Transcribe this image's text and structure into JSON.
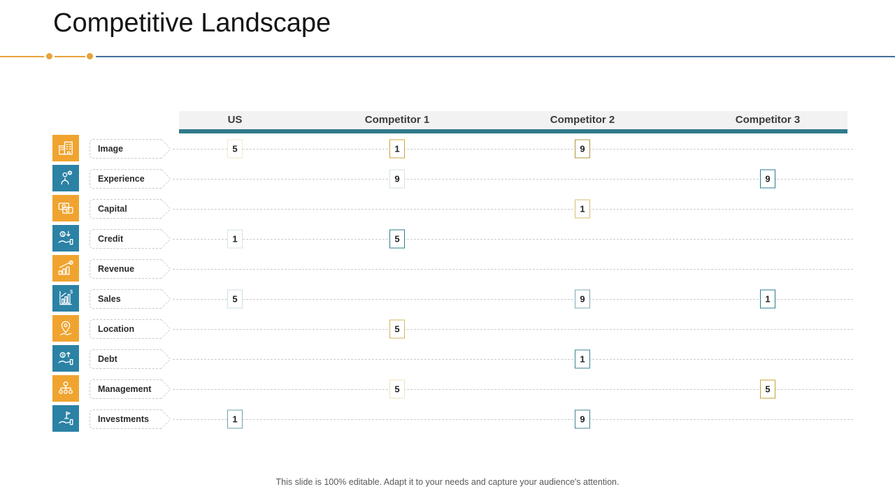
{
  "slide": {
    "title": "Competitive Landscape",
    "footer": "This slide is 100% editable. Adapt it to your needs and capture your audience's attention."
  },
  "colors": {
    "orange": "#F0A42F",
    "blue": "#2B82A5",
    "teal_bar": "#2F7A8C",
    "divider_orange": "#E9A23B",
    "divider_blue": "#41719C",
    "header_bg": "#F2F2F2"
  },
  "table": {
    "columns": [
      "US",
      "Competitor 1",
      "Competitor 2",
      "Competitor 3"
    ],
    "rows": [
      {
        "label": "Image",
        "icon": "building-icon",
        "icon_bg": "orange",
        "values": [
          {
            "col": 0,
            "value": "5",
            "border": "#F3EAD1"
          },
          {
            "col": 1,
            "value": "1",
            "border": "#CCA43A"
          },
          {
            "col": 2,
            "value": "9",
            "border": "#B2953E"
          }
        ]
      },
      {
        "label": "Experience",
        "icon": "person-gear-icon",
        "icon_bg": "blue",
        "values": [
          {
            "col": 1,
            "value": "9",
            "border": "#D4E1E5"
          },
          {
            "col": 3,
            "value": "9",
            "border": "#2E7B8C"
          }
        ]
      },
      {
        "label": "Capital",
        "icon": "cash-stack-icon",
        "icon_bg": "orange",
        "values": [
          {
            "col": 2,
            "value": "1",
            "border": "#D9BC6A"
          }
        ]
      },
      {
        "label": "Credit",
        "icon": "hand-coin-down-icon",
        "icon_bg": "blue",
        "values": [
          {
            "col": 0,
            "value": "1",
            "border": "#D6E3E7"
          },
          {
            "col": 1,
            "value": "5",
            "border": "#2E7B8C"
          }
        ]
      },
      {
        "label": "Revenue",
        "icon": "growth-chart-icon",
        "icon_bg": "orange",
        "values": []
      },
      {
        "label": "Sales",
        "icon": "bar-chart-dollar-icon",
        "icon_bg": "blue",
        "values": [
          {
            "col": 0,
            "value": "5",
            "border": "#CFDFE4"
          },
          {
            "col": 2,
            "value": "9",
            "border": "#7FA9B2"
          },
          {
            "col": 3,
            "value": "1",
            "border": "#2E7B8C"
          }
        ]
      },
      {
        "label": "Location",
        "icon": "map-pin-icon",
        "icon_bg": "orange",
        "values": [
          {
            "col": 1,
            "value": "5",
            "border": "#D4B45C"
          }
        ]
      },
      {
        "label": "Debt",
        "icon": "hand-coin-up-icon",
        "icon_bg": "blue",
        "values": [
          {
            "col": 2,
            "value": "1",
            "border": "#3E8191"
          }
        ]
      },
      {
        "label": "Management",
        "icon": "org-chart-icon",
        "icon_bg": "orange",
        "values": [
          {
            "col": 1,
            "value": "5",
            "border": "#EFE3BC"
          },
          {
            "col": 3,
            "value": "5",
            "border": "#C89F35"
          }
        ]
      },
      {
        "label": "Investments",
        "icon": "hand-plant-icon",
        "icon_bg": "blue",
        "values": [
          {
            "col": 0,
            "value": "1",
            "border": "#6FA0AC"
          },
          {
            "col": 2,
            "value": "9",
            "border": "#44828F"
          }
        ]
      }
    ]
  }
}
